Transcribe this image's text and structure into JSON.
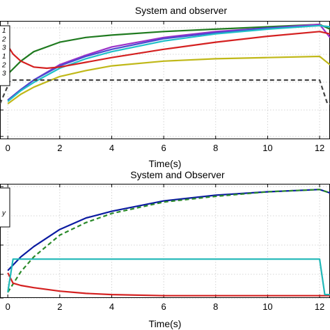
{
  "chart_data": [
    {
      "type": "line",
      "title": "System and observer",
      "xlabel": "",
      "ylabel": "",
      "xlim": [
        -0.3,
        12.4
      ],
      "ylim": [
        0,
        1
      ],
      "x_ticks": [
        0,
        2,
        4,
        6,
        8,
        10,
        12
      ],
      "x_tick_labels": [
        "0",
        "2",
        "4",
        "6",
        "8",
        "10",
        "12"
      ],
      "grid": true,
      "legend_position": "left (partially cut off)",
      "legend_labels": [
        "1",
        "2",
        "3",
        "1",
        "2",
        "3",
        ""
      ],
      "series": [
        {
          "color": "#1f7a1f",
          "style": "solid",
          "x": [
            0,
            0.5,
            1,
            2,
            3,
            4,
            6,
            8,
            10,
            12,
            12.4
          ],
          "y": [
            0.55,
            0.66,
            0.74,
            0.82,
            0.86,
            0.88,
            0.91,
            0.93,
            0.95,
            0.97,
            0.93
          ]
        },
        {
          "color": "#9b30c8",
          "style": "solid",
          "x": [
            0,
            0.5,
            1,
            2,
            3,
            4,
            6,
            8,
            10,
            12,
            12.4
          ],
          "y": [
            0.33,
            0.42,
            0.5,
            0.63,
            0.71,
            0.78,
            0.86,
            0.91,
            0.94,
            0.97,
            0.86
          ]
        },
        {
          "color": "#4a4ad0",
          "style": "solid",
          "x": [
            0,
            0.5,
            1,
            2,
            3,
            4,
            6,
            8,
            10,
            12,
            12.4
          ],
          "y": [
            0.33,
            0.42,
            0.5,
            0.62,
            0.7,
            0.76,
            0.85,
            0.9,
            0.94,
            0.96,
            0.95
          ]
        },
        {
          "color": "#20c0c8",
          "style": "solid",
          "x": [
            0,
            0.5,
            1,
            2,
            3,
            4,
            6,
            8,
            10,
            12,
            12.4
          ],
          "y": [
            0.32,
            0.41,
            0.48,
            0.6,
            0.68,
            0.74,
            0.83,
            0.89,
            0.93,
            0.96,
            0.95
          ]
        },
        {
          "color": "#d42020",
          "style": "solid",
          "x": [
            0,
            0.2,
            0.5,
            1,
            1.5,
            2,
            3,
            4,
            6,
            8,
            10,
            12,
            12.4
          ],
          "y": [
            0.79,
            0.72,
            0.66,
            0.61,
            0.6,
            0.61,
            0.65,
            0.69,
            0.76,
            0.82,
            0.87,
            0.91,
            0.89
          ]
        },
        {
          "color": "#c0b818",
          "style": "solid",
          "x": [
            0,
            0.5,
            1,
            2,
            3,
            4,
            6,
            8,
            10,
            12,
            12.4
          ],
          "y": [
            0.3,
            0.38,
            0.44,
            0.53,
            0.58,
            0.62,
            0.66,
            0.68,
            0.69,
            0.7,
            0.63
          ]
        },
        {
          "color": "#444444",
          "style": "dashed",
          "x": [
            -0.3,
            0.1,
            12.0,
            12.3,
            12.4
          ],
          "y": [
            0.3,
            0.5,
            0.5,
            0.3,
            0.3
          ]
        }
      ]
    },
    {
      "type": "line",
      "title": "System and Observer",
      "xlabel": "Time(s)",
      "ylabel": "",
      "xlim": [
        -0.3,
        12.4
      ],
      "ylim": [
        0,
        1
      ],
      "x_ticks": [
        0,
        2,
        4,
        6,
        8,
        10,
        12
      ],
      "x_tick_labels": [
        "0",
        "2",
        "4",
        "6",
        "8",
        "10",
        "12"
      ],
      "grid": true,
      "legend_position": "left (partially cut off)",
      "legend_labels": [
        "",
        "",
        "y",
        ""
      ],
      "series": [
        {
          "color": "#0a1aa0",
          "style": "solid",
          "x": [
            0,
            0.5,
            1,
            2,
            3,
            4,
            6,
            8,
            10,
            12,
            12.4
          ],
          "y": [
            0.24,
            0.36,
            0.45,
            0.6,
            0.7,
            0.76,
            0.85,
            0.9,
            0.93,
            0.95,
            0.92
          ]
        },
        {
          "color": "#2a8a2a",
          "style": "dashed",
          "x": [
            0,
            0.5,
            1,
            2,
            3,
            4,
            6,
            8,
            10,
            12,
            12.4
          ],
          "y": [
            0.05,
            0.23,
            0.36,
            0.55,
            0.66,
            0.74,
            0.84,
            0.89,
            0.93,
            0.95,
            0.92
          ]
        },
        {
          "color": "#d42020",
          "style": "solid",
          "x": [
            0,
            0.2,
            0.5,
            1,
            2,
            3,
            4,
            6,
            8,
            10,
            12,
            12.4
          ],
          "y": [
            0.22,
            0.13,
            0.11,
            0.09,
            0.06,
            0.04,
            0.03,
            0.02,
            0.02,
            0.02,
            0.02,
            0.02
          ]
        },
        {
          "color": "#20b8b8",
          "style": "solid",
          "x": [
            0,
            0.2,
            12.0,
            12.2,
            12.4
          ],
          "y": [
            0.05,
            0.34,
            0.34,
            0.03,
            0.03
          ]
        }
      ]
    }
  ],
  "page": {
    "title_1": "System and observer",
    "title_2": "System and Observer",
    "xlabel_1": "Time(s)",
    "xlabel_2": "Time(s)"
  }
}
